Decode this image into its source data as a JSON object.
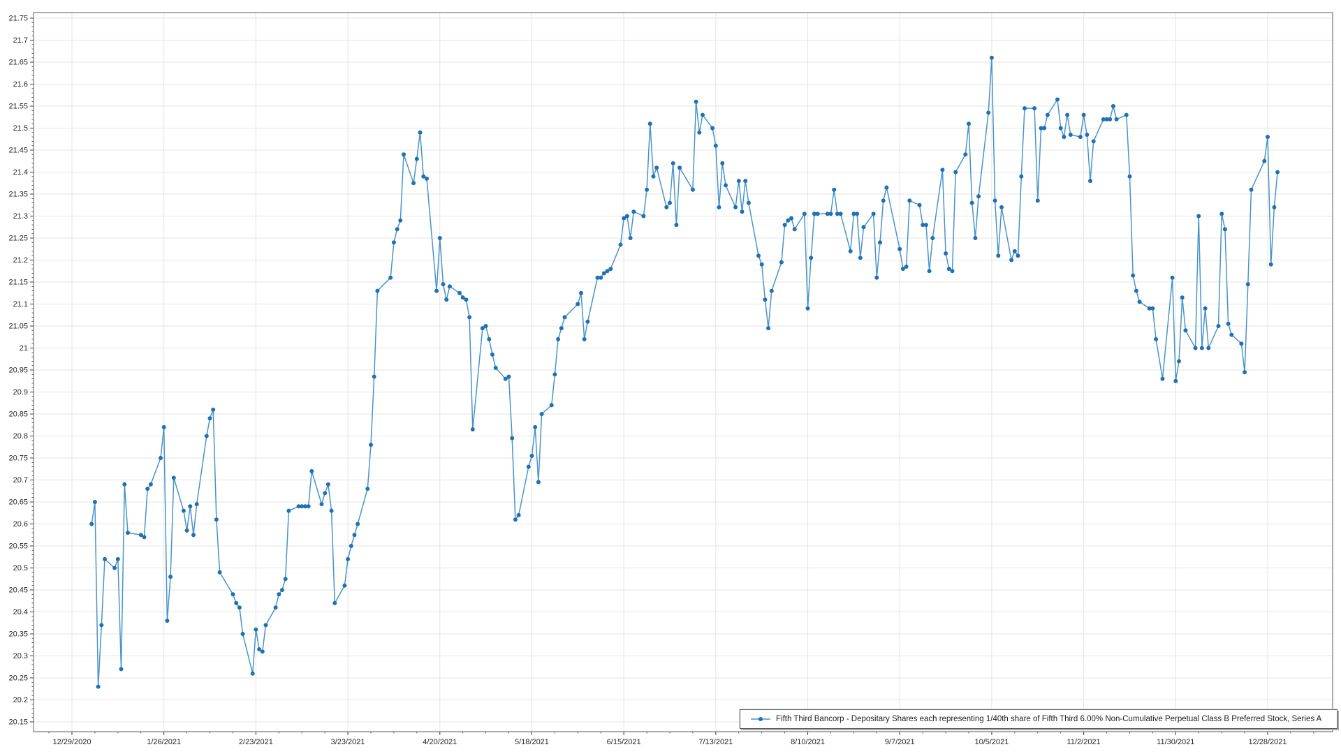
{
  "chart_data": {
    "type": "line",
    "title": "",
    "xlabel": "",
    "ylabel": "",
    "grid": true,
    "legend_position": "bottom-right",
    "ylim": [
      20.15,
      21.75
    ],
    "y_tick_step": 0.05,
    "x_axis_start_date": "12/29/2020",
    "x_tick_interval_days": 28,
    "x_tick_labels": [
      "12/29/2020",
      "1/26/2021",
      "2/23/2021",
      "3/23/2021",
      "4/20/2021",
      "5/18/2021",
      "6/15/2021",
      "7/13/2021",
      "8/10/2021",
      "9/7/2021",
      "10/5/2021",
      "11/2/2021",
      "11/30/2021",
      "12/28/2021"
    ],
    "colors": {
      "line": "#4a94c8",
      "marker": "#2070b4",
      "gridline": "#e4e4e4",
      "plot_border": "#5a5a5a",
      "tick": "#3a3a3a",
      "label_text": "#262626"
    },
    "series": [
      {
        "name": "Fifth Third Bancorp - Depositary Shares each representing 1/40th share of Fifth Third 6.00% Non-Cumulative Perpetual Class B Preferred Stock, Series A",
        "points": [
          [
            "1/4/2021",
            20.6
          ],
          [
            "1/5/2021",
            20.65
          ],
          [
            "1/6/2021",
            20.23
          ],
          [
            "1/7/2021",
            20.37
          ],
          [
            "1/8/2021",
            20.52
          ],
          [
            "1/11/2021",
            20.5
          ],
          [
            "1/12/2021",
            20.52
          ],
          [
            "1/13/2021",
            20.27
          ],
          [
            "1/14/2021",
            20.69
          ],
          [
            "1/15/2021",
            20.58
          ],
          [
            "1/19/2021",
            20.575
          ],
          [
            "1/20/2021",
            20.57
          ],
          [
            "1/21/2021",
            20.68
          ],
          [
            "1/22/2021",
            20.69
          ],
          [
            "1/25/2021",
            20.75
          ],
          [
            "1/26/2021",
            20.82
          ],
          [
            "1/27/2021",
            20.38
          ],
          [
            "1/28/2021",
            20.48
          ],
          [
            "1/29/2021",
            20.705
          ],
          [
            "2/1/2021",
            20.63
          ],
          [
            "2/2/2021",
            20.585
          ],
          [
            "2/3/2021",
            20.64
          ],
          [
            "2/4/2021",
            20.575
          ],
          [
            "2/5/2021",
            20.645
          ],
          [
            "2/8/2021",
            20.8
          ],
          [
            "2/9/2021",
            20.84
          ],
          [
            "2/10/2021",
            20.86
          ],
          [
            "2/11/2021",
            20.61
          ],
          [
            "2/12/2021",
            20.49
          ],
          [
            "2/16/2021",
            20.44
          ],
          [
            "2/17/2021",
            20.42
          ],
          [
            "2/18/2021",
            20.41
          ],
          [
            "2/19/2021",
            20.35
          ],
          [
            "2/22/2021",
            20.26
          ],
          [
            "2/23/2021",
            20.36
          ],
          [
            "2/24/2021",
            20.315
          ],
          [
            "2/25/2021",
            20.31
          ],
          [
            "2/26/2021",
            20.37
          ],
          [
            "3/1/2021",
            20.41
          ],
          [
            "3/2/2021",
            20.44
          ],
          [
            "3/3/2021",
            20.45
          ],
          [
            "3/4/2021",
            20.475
          ],
          [
            "3/5/2021",
            20.63
          ],
          [
            "3/8/2021",
            20.64
          ],
          [
            "3/9/2021",
            20.64
          ],
          [
            "3/10/2021",
            20.64
          ],
          [
            "3/11/2021",
            20.64
          ],
          [
            "3/12/2021",
            20.72
          ],
          [
            "3/15/2021",
            20.645
          ],
          [
            "3/16/2021",
            20.67
          ],
          [
            "3/17/2021",
            20.69
          ],
          [
            "3/18/2021",
            20.63
          ],
          [
            "3/19/2021",
            20.42
          ],
          [
            "3/22/2021",
            20.46
          ],
          [
            "3/23/2021",
            20.52
          ],
          [
            "3/24/2021",
            20.55
          ],
          [
            "3/25/2021",
            20.575
          ],
          [
            "3/26/2021",
            20.6
          ],
          [
            "3/29/2021",
            20.68
          ],
          [
            "3/30/2021",
            20.78
          ],
          [
            "3/31/2021",
            20.935
          ],
          [
            "4/1/2021",
            21.13
          ],
          [
            "4/5/2021",
            21.16
          ],
          [
            "4/6/2021",
            21.24
          ],
          [
            "4/7/2021",
            21.27
          ],
          [
            "4/8/2021",
            21.29
          ],
          [
            "4/9/2021",
            21.44
          ],
          [
            "4/12/2021",
            21.375
          ],
          [
            "4/13/2021",
            21.43
          ],
          [
            "4/14/2021",
            21.49
          ],
          [
            "4/15/2021",
            21.39
          ],
          [
            "4/16/2021",
            21.385
          ],
          [
            "4/19/2021",
            21.13
          ],
          [
            "4/20/2021",
            21.25
          ],
          [
            "4/21/2021",
            21.145
          ],
          [
            "4/22/2021",
            21.11
          ],
          [
            "4/23/2021",
            21.14
          ],
          [
            "4/26/2021",
            21.125
          ],
          [
            "4/27/2021",
            21.115
          ],
          [
            "4/28/2021",
            21.11
          ],
          [
            "4/29/2021",
            21.07
          ],
          [
            "4/30/2021",
            20.815
          ],
          [
            "5/3/2021",
            21.045
          ],
          [
            "5/4/2021",
            21.05
          ],
          [
            "5/5/2021",
            21.02
          ],
          [
            "5/6/2021",
            20.985
          ],
          [
            "5/7/2021",
            20.955
          ],
          [
            "5/10/2021",
            20.93
          ],
          [
            "5/11/2021",
            20.935
          ],
          [
            "5/12/2021",
            20.795
          ],
          [
            "5/13/2021",
            20.61
          ],
          [
            "5/14/2021",
            20.62
          ],
          [
            "5/17/2021",
            20.73
          ],
          [
            "5/18/2021",
            20.755
          ],
          [
            "5/19/2021",
            20.82
          ],
          [
            "5/20/2021",
            20.695
          ],
          [
            "5/21/2021",
            20.85
          ],
          [
            "5/24/2021",
            20.87
          ],
          [
            "5/25/2021",
            20.94
          ],
          [
            "5/26/2021",
            21.02
          ],
          [
            "5/27/2021",
            21.045
          ],
          [
            "5/28/2021",
            21.07
          ],
          [
            "6/1/2021",
            21.1
          ],
          [
            "6/2/2021",
            21.125
          ],
          [
            "6/3/2021",
            21.02
          ],
          [
            "6/4/2021",
            21.06
          ],
          [
            "6/7/2021",
            21.16
          ],
          [
            "6/8/2021",
            21.16
          ],
          [
            "6/9/2021",
            21.17
          ],
          [
            "6/10/2021",
            21.175
          ],
          [
            "6/11/2021",
            21.18
          ],
          [
            "6/14/2021",
            21.235
          ],
          [
            "6/15/2021",
            21.295
          ],
          [
            "6/16/2021",
            21.3
          ],
          [
            "6/17/2021",
            21.25
          ],
          [
            "6/18/2021",
            21.31
          ],
          [
            "6/21/2021",
            21.3
          ],
          [
            "6/22/2021",
            21.36
          ],
          [
            "6/23/2021",
            21.51
          ],
          [
            "6/24/2021",
            21.39
          ],
          [
            "6/25/2021",
            21.41
          ],
          [
            "6/28/2021",
            21.32
          ],
          [
            "6/29/2021",
            21.33
          ],
          [
            "6/30/2021",
            21.42
          ],
          [
            "7/1/2021",
            21.28
          ],
          [
            "7/2/2021",
            21.41
          ],
          [
            "7/6/2021",
            21.36
          ],
          [
            "7/7/2021",
            21.56
          ],
          [
            "7/8/2021",
            21.49
          ],
          [
            "7/9/2021",
            21.53
          ],
          [
            "7/12/2021",
            21.5
          ],
          [
            "7/13/2021",
            21.46
          ],
          [
            "7/14/2021",
            21.32
          ],
          [
            "7/15/2021",
            21.42
          ],
          [
            "7/16/2021",
            21.37
          ],
          [
            "7/19/2021",
            21.32
          ],
          [
            "7/20/2021",
            21.38
          ],
          [
            "7/21/2021",
            21.31
          ],
          [
            "7/22/2021",
            21.38
          ],
          [
            "7/23/2021",
            21.33
          ],
          [
            "7/26/2021",
            21.21
          ],
          [
            "7/27/2021",
            21.19
          ],
          [
            "7/28/2021",
            21.11
          ],
          [
            "7/29/2021",
            21.045
          ],
          [
            "7/30/2021",
            21.13
          ],
          [
            "8/2/2021",
            21.195
          ],
          [
            "8/3/2021",
            21.28
          ],
          [
            "8/4/2021",
            21.29
          ],
          [
            "8/5/2021",
            21.295
          ],
          [
            "8/6/2021",
            21.27
          ],
          [
            "8/9/2021",
            21.305
          ],
          [
            "8/10/2021",
            21.09
          ],
          [
            "8/11/2021",
            21.205
          ],
          [
            "8/12/2021",
            21.305
          ],
          [
            "8/13/2021",
            21.305
          ],
          [
            "8/16/2021",
            21.305
          ],
          [
            "8/17/2021",
            21.305
          ],
          [
            "8/18/2021",
            21.36
          ],
          [
            "8/19/2021",
            21.305
          ],
          [
            "8/20/2021",
            21.305
          ],
          [
            "8/23/2021",
            21.22
          ],
          [
            "8/24/2021",
            21.305
          ],
          [
            "8/25/2021",
            21.305
          ],
          [
            "8/26/2021",
            21.205
          ],
          [
            "8/27/2021",
            21.275
          ],
          [
            "8/30/2021",
            21.305
          ],
          [
            "8/31/2021",
            21.16
          ],
          [
            "9/1/2021",
            21.24
          ],
          [
            "9/2/2021",
            21.335
          ],
          [
            "9/3/2021",
            21.365
          ],
          [
            "9/7/2021",
            21.225
          ],
          [
            "9/8/2021",
            21.18
          ],
          [
            "9/9/2021",
            21.185
          ],
          [
            "9/10/2021",
            21.335
          ],
          [
            "9/13/2021",
            21.325
          ],
          [
            "9/14/2021",
            21.28
          ],
          [
            "9/15/2021",
            21.28
          ],
          [
            "9/16/2021",
            21.175
          ],
          [
            "9/17/2021",
            21.25
          ],
          [
            "9/20/2021",
            21.405
          ],
          [
            "9/21/2021",
            21.215
          ],
          [
            "9/22/2021",
            21.18
          ],
          [
            "9/23/2021",
            21.175
          ],
          [
            "9/24/2021",
            21.4
          ],
          [
            "9/27/2021",
            21.44
          ],
          [
            "9/28/2021",
            21.51
          ],
          [
            "9/29/2021",
            21.33
          ],
          [
            "9/30/2021",
            21.25
          ],
          [
            "10/1/2021",
            21.345
          ],
          [
            "10/4/2021",
            21.535
          ],
          [
            "10/5/2021",
            21.66
          ],
          [
            "10/6/2021",
            21.335
          ],
          [
            "10/7/2021",
            21.21
          ],
          [
            "10/8/2021",
            21.32
          ],
          [
            "10/11/2021",
            21.2
          ],
          [
            "10/12/2021",
            21.22
          ],
          [
            "10/13/2021",
            21.21
          ],
          [
            "10/14/2021",
            21.39
          ],
          [
            "10/15/2021",
            21.545
          ],
          [
            "10/18/2021",
            21.545
          ],
          [
            "10/19/2021",
            21.335
          ],
          [
            "10/20/2021",
            21.5
          ],
          [
            "10/21/2021",
            21.5
          ],
          [
            "10/22/2021",
            21.53
          ],
          [
            "10/25/2021",
            21.565
          ],
          [
            "10/26/2021",
            21.5
          ],
          [
            "10/27/2021",
            21.48
          ],
          [
            "10/28/2021",
            21.53
          ],
          [
            "10/29/2021",
            21.485
          ],
          [
            "11/1/2021",
            21.48
          ],
          [
            "11/2/2021",
            21.53
          ],
          [
            "11/3/2021",
            21.485
          ],
          [
            "11/4/2021",
            21.38
          ],
          [
            "11/5/2021",
            21.47
          ],
          [
            "11/8/2021",
            21.52
          ],
          [
            "11/9/2021",
            21.52
          ],
          [
            "11/10/2021",
            21.52
          ],
          [
            "11/11/2021",
            21.55
          ],
          [
            "11/12/2021",
            21.52
          ],
          [
            "11/15/2021",
            21.53
          ],
          [
            "11/16/2021",
            21.39
          ],
          [
            "11/17/2021",
            21.165
          ],
          [
            "11/18/2021",
            21.13
          ],
          [
            "11/19/2021",
            21.105
          ],
          [
            "11/22/2021",
            21.09
          ],
          [
            "11/23/2021",
            21.09
          ],
          [
            "11/24/2021",
            21.02
          ],
          [
            "11/26/2021",
            20.93
          ],
          [
            "11/29/2021",
            21.16
          ],
          [
            "11/30/2021",
            20.925
          ],
          [
            "12/1/2021",
            20.97
          ],
          [
            "12/2/2021",
            21.115
          ],
          [
            "12/3/2021",
            21.04
          ],
          [
            "12/6/2021",
            21.0
          ],
          [
            "12/7/2021",
            21.3
          ],
          [
            "12/8/2021",
            21.0
          ],
          [
            "12/9/2021",
            21.09
          ],
          [
            "12/10/2021",
            21.0
          ],
          [
            "12/13/2021",
            21.05
          ],
          [
            "12/14/2021",
            21.305
          ],
          [
            "12/15/2021",
            21.27
          ],
          [
            "12/16/2021",
            21.055
          ],
          [
            "12/17/2021",
            21.03
          ],
          [
            "12/20/2021",
            21.01
          ],
          [
            "12/21/2021",
            20.945
          ],
          [
            "12/22/2021",
            21.145
          ],
          [
            "12/23/2021",
            21.36
          ],
          [
            "12/27/2021",
            21.425
          ],
          [
            "12/28/2021",
            21.48
          ],
          [
            "12/29/2021",
            21.19
          ],
          [
            "12/30/2021",
            21.32
          ],
          [
            "12/31/2021",
            21.4
          ]
        ]
      }
    ]
  },
  "legend": {
    "label": "Fifth Third Bancorp - Depositary Shares each representing 1/40th share of Fifth Third 6.00% Non-Cumulative Perpetual Class B Preferred Stock, Series A"
  }
}
